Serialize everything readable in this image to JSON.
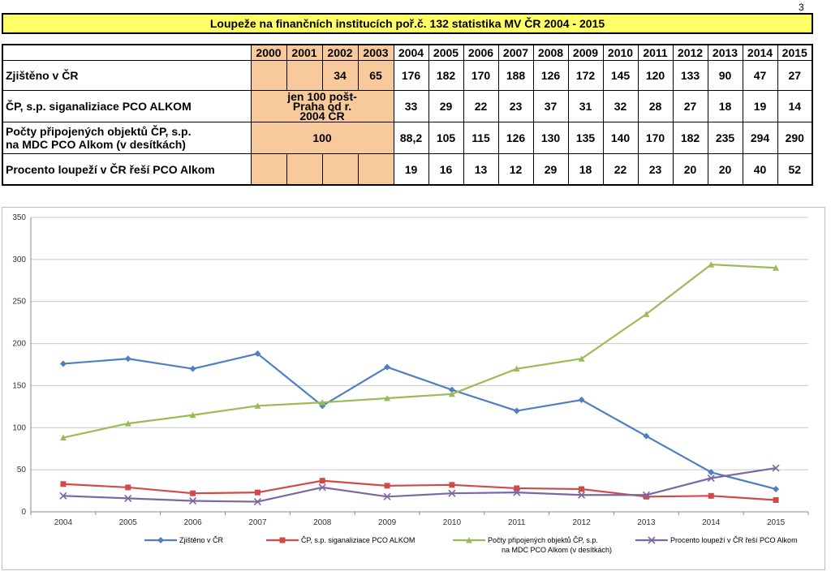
{
  "page_number": "3",
  "title": "Loupeže na finančních institucích poř.č. 132  statistika  MV ČR  2004 - 2015",
  "table": {
    "years": [
      "2000",
      "2001",
      "2002",
      "2003",
      "2004",
      "2005",
      "2006",
      "2007",
      "2008",
      "2009",
      "2010",
      "2011",
      "2012",
      "2013",
      "2014",
      "2015"
    ],
    "rows": [
      {
        "label": "Zjištěno v ČR",
        "pre": [
          "",
          "",
          "34",
          "65"
        ],
        "values": [
          "176",
          "182",
          "170",
          "188",
          "126",
          "172",
          "145",
          "120",
          "133",
          "90",
          "47",
          "27"
        ]
      },
      {
        "label": "ČP, s.p. siganaliziace  PCO ALKOM",
        "pre_note": "jen 100 pošt-Praha od r. 2004 ČR",
        "values": [
          "33",
          "29",
          "22",
          "23",
          "37",
          "31",
          "32",
          "28",
          "27",
          "18",
          "19",
          "14"
        ]
      },
      {
        "label_line1": "Počty připojených objektů ČP, s.p.",
        "label_line2": "na MDC PCO Alkom (v desítkách)",
        "pre_note": "100",
        "values": [
          "88,2",
          "105",
          "115",
          "126",
          "130",
          "135",
          "140",
          "170",
          "182",
          "235",
          "294",
          "290"
        ]
      },
      {
        "label": "Procento loupeží  v ČR řeší PCO Alkom",
        "pre": [
          "",
          "",
          "",
          ""
        ],
        "values": [
          "19",
          "16",
          "13",
          "12",
          "29",
          "18",
          "22",
          "23",
          "20",
          "20",
          "40",
          "52"
        ]
      }
    ]
  },
  "chart_data": {
    "type": "line",
    "categories": [
      "2004",
      "2005",
      "2006",
      "2007",
      "2008",
      "2009",
      "2010",
      "2011",
      "2012",
      "2013",
      "2014",
      "2015"
    ],
    "ylim": [
      0,
      350
    ],
    "yticks": [
      0,
      50,
      100,
      150,
      200,
      250,
      300,
      350
    ],
    "grid": true,
    "legend": "bottom",
    "series": [
      {
        "name": "Zjištěno v ČR",
        "color": "#4f7ec2",
        "marker": "diamond",
        "values": [
          176,
          182,
          170,
          188,
          126,
          172,
          145,
          120,
          133,
          90,
          47,
          27
        ]
      },
      {
        "name": "ČP, s.p. siganaliziace  PCO ALKOM",
        "color": "#d24a47",
        "marker": "square",
        "values": [
          33,
          29,
          22,
          23,
          37,
          31,
          32,
          28,
          27,
          18,
          19,
          14
        ]
      },
      {
        "name": "Počty připojených objektů ČP, s.p. na MDC PCO Alkom (v desítkách)",
        "color": "#9bbb59",
        "marker": "triangle",
        "legend_line1": "Počty připojených objektů ČP, s.p.",
        "legend_line2": "na MDC PCO Alkom (v desítkách)",
        "values": [
          88.2,
          105,
          115,
          126,
          130,
          135,
          140,
          170,
          182,
          235,
          294,
          290
        ]
      },
      {
        "name": "Procento loupeží  v ČR řeší PCO Alkom",
        "color": "#7d66a5",
        "marker": "x",
        "values": [
          19,
          16,
          13,
          12,
          29,
          18,
          22,
          23,
          20,
          20,
          40,
          52
        ]
      }
    ]
  }
}
